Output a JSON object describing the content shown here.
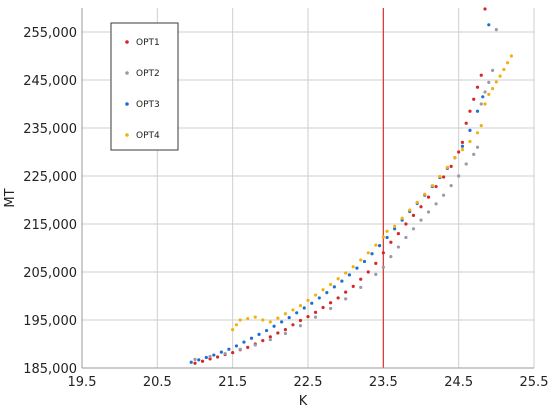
{
  "chart_data": {
    "type": "scatter",
    "xlabel": "K",
    "ylabel": "MT",
    "xlim": [
      19.5,
      25.5
    ],
    "ylim": [
      185000,
      260000
    ],
    "x_ticks": [
      "19.5",
      "20.5",
      "21.5",
      "22.5",
      "23.5",
      "24.5",
      "25.5"
    ],
    "y_ticks": [
      "185,000",
      "195,000",
      "205,000",
      "215,000",
      "225,000",
      "235,000",
      "245,000",
      "255,000"
    ],
    "grid": true,
    "legend_position": "top-left",
    "reference_line": {
      "x": 23.5,
      "color": "#d9342b"
    },
    "series": [
      {
        "name": "OPT1",
        "color": "#d62728",
        "points": [
          [
            21.0,
            186000
          ],
          [
            21.1,
            186400
          ],
          [
            21.2,
            186900
          ],
          [
            21.3,
            187300
          ],
          [
            21.4,
            187800
          ],
          [
            21.5,
            188200
          ],
          [
            21.6,
            188800
          ],
          [
            21.7,
            189300
          ],
          [
            21.8,
            190000
          ],
          [
            21.9,
            190700
          ],
          [
            22.0,
            191500
          ],
          [
            22.1,
            192300
          ],
          [
            22.2,
            193000
          ],
          [
            22.3,
            194000
          ],
          [
            22.4,
            194900
          ],
          [
            22.5,
            195700
          ],
          [
            22.6,
            196600
          ],
          [
            22.7,
            197600
          ],
          [
            22.8,
            198600
          ],
          [
            22.9,
            199600
          ],
          [
            23.0,
            200800
          ],
          [
            23.1,
            202000
          ],
          [
            23.2,
            203500
          ],
          [
            23.3,
            205000
          ],
          [
            23.4,
            206800
          ],
          [
            23.5,
            209000
          ],
          [
            23.6,
            211200
          ],
          [
            23.7,
            213000
          ],
          [
            23.8,
            215000
          ],
          [
            23.9,
            216800
          ],
          [
            24.0,
            218600
          ],
          [
            24.1,
            220600
          ],
          [
            24.2,
            222800
          ],
          [
            24.3,
            224800
          ],
          [
            24.4,
            227000
          ],
          [
            24.5,
            230000
          ],
          [
            24.55,
            232000
          ],
          [
            24.6,
            236000
          ],
          [
            24.65,
            238500
          ],
          [
            24.7,
            241000
          ],
          [
            24.75,
            243500
          ],
          [
            24.8,
            246000
          ],
          [
            24.85,
            259800
          ]
        ]
      },
      {
        "name": "OPT2",
        "color": "#9a9aaa",
        "points": [
          [
            21.0,
            186800
          ],
          [
            21.2,
            187400
          ],
          [
            21.4,
            188000
          ],
          [
            21.6,
            188900
          ],
          [
            21.8,
            189800
          ],
          [
            22.0,
            190900
          ],
          [
            22.2,
            192200
          ],
          [
            22.4,
            193800
          ],
          [
            22.6,
            195600
          ],
          [
            22.8,
            197400
          ],
          [
            23.0,
            199400
          ],
          [
            23.2,
            201800
          ],
          [
            23.4,
            204500
          ],
          [
            23.5,
            206000
          ],
          [
            23.6,
            208200
          ],
          [
            23.7,
            210200
          ],
          [
            23.8,
            212200
          ],
          [
            23.9,
            214000
          ],
          [
            24.0,
            215800
          ],
          [
            24.1,
            217500
          ],
          [
            24.2,
            219200
          ],
          [
            24.3,
            221000
          ],
          [
            24.4,
            223000
          ],
          [
            24.5,
            225000
          ],
          [
            24.6,
            227500
          ],
          [
            24.7,
            229500
          ],
          [
            24.75,
            231000
          ],
          [
            24.8,
            240000
          ],
          [
            24.85,
            242500
          ],
          [
            24.9,
            244500
          ],
          [
            24.95,
            247000
          ],
          [
            25.0,
            255500
          ]
        ]
      },
      {
        "name": "OPT3",
        "color": "#1f6fd1",
        "points": [
          [
            20.95,
            186200
          ],
          [
            21.05,
            186700
          ],
          [
            21.15,
            187200
          ],
          [
            21.25,
            187700
          ],
          [
            21.35,
            188300
          ],
          [
            21.45,
            188900
          ],
          [
            21.55,
            189600
          ],
          [
            21.65,
            190400
          ],
          [
            21.75,
            191200
          ],
          [
            21.85,
            192000
          ],
          [
            21.95,
            192800
          ],
          [
            22.05,
            193700
          ],
          [
            22.15,
            194600
          ],
          [
            22.25,
            195500
          ],
          [
            22.35,
            196500
          ],
          [
            22.45,
            197500
          ],
          [
            22.55,
            198500
          ],
          [
            22.65,
            199600
          ],
          [
            22.75,
            200700
          ],
          [
            22.85,
            201900
          ],
          [
            22.95,
            203100
          ],
          [
            23.05,
            204400
          ],
          [
            23.15,
            205800
          ],
          [
            23.25,
            207200
          ],
          [
            23.35,
            208800
          ],
          [
            23.45,
            210500
          ],
          [
            23.55,
            212200
          ],
          [
            23.65,
            214000
          ],
          [
            23.75,
            215800
          ],
          [
            23.85,
            217600
          ],
          [
            23.95,
            219300
          ],
          [
            24.05,
            221000
          ],
          [
            24.15,
            222800
          ],
          [
            24.25,
            224700
          ],
          [
            24.35,
            226600
          ],
          [
            24.45,
            228800
          ],
          [
            24.55,
            231200
          ],
          [
            24.65,
            234500
          ],
          [
            24.75,
            238500
          ],
          [
            24.82,
            241500
          ],
          [
            24.9,
            256500
          ]
        ]
      },
      {
        "name": "OPT4",
        "color": "#f2b10d",
        "points": [
          [
            21.5,
            193000
          ],
          [
            21.55,
            194000
          ],
          [
            21.6,
            195000
          ],
          [
            21.7,
            195300
          ],
          [
            21.8,
            195600
          ],
          [
            21.9,
            195000
          ],
          [
            22.0,
            194600
          ],
          [
            22.1,
            195400
          ],
          [
            22.2,
            196300
          ],
          [
            22.3,
            197100
          ],
          [
            22.4,
            198000
          ],
          [
            22.5,
            199100
          ],
          [
            22.6,
            200200
          ],
          [
            22.7,
            201300
          ],
          [
            22.8,
            202400
          ],
          [
            22.9,
            203600
          ],
          [
            23.0,
            204800
          ],
          [
            23.1,
            206100
          ],
          [
            23.2,
            207500
          ],
          [
            23.3,
            209000
          ],
          [
            23.4,
            210600
          ],
          [
            23.5,
            212300
          ],
          [
            23.55,
            213500
          ],
          [
            23.65,
            214500
          ],
          [
            23.75,
            216200
          ],
          [
            23.85,
            217900
          ],
          [
            23.95,
            219500
          ],
          [
            24.05,
            221200
          ],
          [
            24.15,
            223000
          ],
          [
            24.25,
            224900
          ],
          [
            24.35,
            226800
          ],
          [
            24.45,
            228800
          ],
          [
            24.55,
            230500
          ],
          [
            24.65,
            232200
          ],
          [
            24.75,
            234000
          ],
          [
            24.8,
            235500
          ],
          [
            24.85,
            240000
          ],
          [
            24.9,
            242000
          ],
          [
            24.95,
            243200
          ],
          [
            25.0,
            244600
          ],
          [
            25.05,
            245800
          ],
          [
            25.1,
            247200
          ],
          [
            25.15,
            248600
          ],
          [
            25.2,
            250000
          ]
        ]
      }
    ]
  }
}
